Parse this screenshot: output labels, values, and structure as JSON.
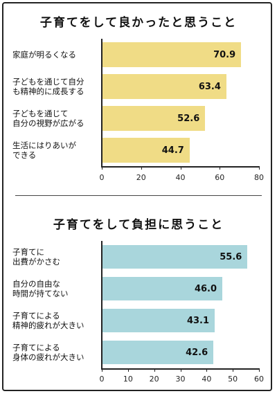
{
  "chart_data": [
    {
      "type": "bar",
      "orientation": "horizontal",
      "title": "子育てをして良かったと思うこと",
      "categories": [
        [
          "家庭が明るくなる"
        ],
        [
          "子どもを通じて自分",
          "も精神的に成長する"
        ],
        [
          "子どもを通じて",
          "自分の視野が広がる"
        ],
        [
          "生活にはりあいが",
          "できる"
        ]
      ],
      "values": [
        70.9,
        63.4,
        52.6,
        44.7
      ],
      "value_labels": [
        "70.9",
        "63.4",
        "52.6",
        "44.7"
      ],
      "xlim": [
        0,
        80
      ],
      "ticks": [
        0,
        20,
        40,
        60,
        80
      ],
      "bar_color": "#f0dc86",
      "grid": false
    },
    {
      "type": "bar",
      "orientation": "horizontal",
      "title": "子育てをして負担に思うこと",
      "categories": [
        [
          "子育てに",
          "出費がかさむ"
        ],
        [
          "自分の自由な",
          "時間が持てない"
        ],
        [
          "子育てによる",
          "精神的疲れが大きい"
        ],
        [
          "子育てによる",
          "身体の疲れが大きい"
        ]
      ],
      "values": [
        55.6,
        46.0,
        43.1,
        42.6
      ],
      "value_labels": [
        "55.6",
        "46.0",
        "43.1",
        "42.6"
      ],
      "xlim": [
        0,
        60
      ],
      "ticks": [
        0,
        10,
        20,
        30,
        40,
        50,
        60
      ],
      "bar_color": "#a9d6dc",
      "grid": false
    }
  ]
}
